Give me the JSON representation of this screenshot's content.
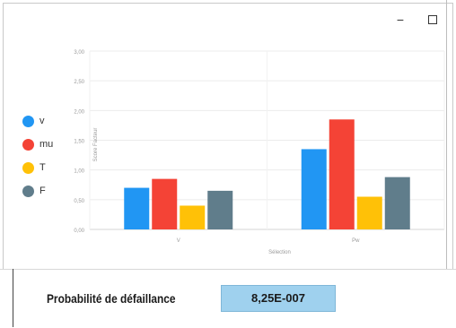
{
  "window": {
    "minimize_glyph": "−",
    "maximize_glyph": ""
  },
  "chart_data": {
    "type": "bar",
    "categories": [
      "V",
      "Pw"
    ],
    "series": [
      {
        "name": "v",
        "color": "#2196f3",
        "values": [
          0.7,
          1.35
        ]
      },
      {
        "name": "mu",
        "color": "#f44336",
        "values": [
          0.85,
          1.85
        ]
      },
      {
        "name": "T",
        "color": "#ffc107",
        "values": [
          0.4,
          0.55
        ]
      },
      {
        "name": "F",
        "color": "#607d8b",
        "values": [
          0.65,
          0.88
        ]
      }
    ],
    "ylim": [
      0,
      3
    ],
    "yticks": [
      "0,00",
      "0,50",
      "1,00",
      "1,50",
      "2,00",
      "2,50",
      "3,00"
    ],
    "xlabel": "Sélection",
    "ylabel": "Score Facteur",
    "grid": true,
    "legend": "left"
  },
  "result": {
    "label": "Probabilité de défaillance",
    "value": "8,25E-007"
  }
}
